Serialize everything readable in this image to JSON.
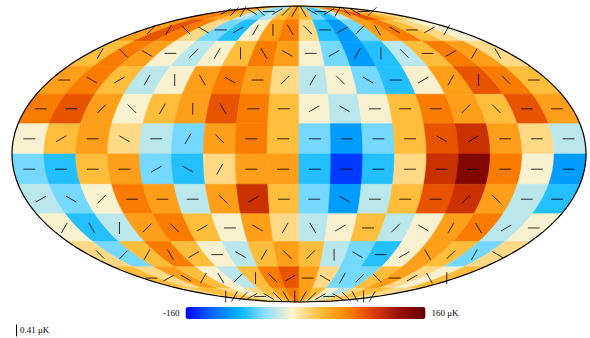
{
  "chart_data": {
    "type": "map",
    "lon_edges": [
      -180,
      -160,
      -140,
      -120,
      -100,
      -80,
      -60,
      -40,
      -20,
      0,
      20,
      40,
      60,
      80,
      100,
      120,
      140,
      160,
      180
    ],
    "lat_edges": [
      90,
      75,
      60,
      45,
      30,
      15,
      0,
      -15,
      -30,
      -45,
      -60,
      -75,
      -90
    ],
    "temperature": [
      [
        60,
        60,
        40,
        20,
        -40,
        -60,
        -40,
        20,
        40,
        20,
        -60,
        -80,
        -40,
        40,
        80,
        40,
        20,
        0
      ],
      [
        40,
        80,
        60,
        0,
        -60,
        -80,
        -20,
        40,
        60,
        0,
        -80,
        -100,
        -60,
        40,
        60,
        20,
        0,
        -20
      ],
      [
        20,
        60,
        40,
        -20,
        -40,
        -20,
        20,
        60,
        40,
        -20,
        -60,
        -100,
        -80,
        -40,
        20,
        60,
        40,
        0
      ],
      [
        40,
        60,
        20,
        -40,
        -20,
        40,
        60,
        40,
        0,
        -40,
        -20,
        -60,
        -80,
        -20,
        40,
        80,
        60,
        20
      ],
      [
        60,
        80,
        40,
        -20,
        20,
        40,
        80,
        60,
        20,
        -20,
        -40,
        -20,
        20,
        60,
        40,
        20,
        80,
        40
      ],
      [
        -20,
        20,
        40,
        0,
        -40,
        -60,
        40,
        60,
        20,
        -60,
        -100,
        -60,
        20,
        80,
        100,
        40,
        0,
        -40
      ],
      [
        -60,
        -80,
        20,
        40,
        -60,
        -80,
        0,
        40,
        40,
        -80,
        -140,
        -80,
        0,
        100,
        140,
        60,
        -20,
        -100
      ],
      [
        -40,
        -60,
        -20,
        60,
        40,
        -40,
        40,
        100,
        20,
        -60,
        -100,
        -40,
        20,
        80,
        100,
        40,
        -40,
        -80
      ],
      [
        -20,
        -80,
        -40,
        40,
        60,
        20,
        -20,
        40,
        0,
        -40,
        -20,
        20,
        -40,
        -20,
        40,
        60,
        -40,
        -20
      ],
      [
        0,
        -60,
        20,
        60,
        20,
        -20,
        -40,
        20,
        40,
        20,
        -40,
        -60,
        -80,
        -20,
        40,
        20,
        -60,
        0
      ],
      [
        20,
        0,
        40,
        20,
        -20,
        -40,
        20,
        60,
        80,
        40,
        0,
        -60,
        -60,
        20,
        40,
        0,
        -20,
        20
      ],
      [
        0,
        20,
        20,
        0,
        -20,
        0,
        20,
        40,
        60,
        40,
        20,
        -20,
        -40,
        0,
        20,
        20,
        0,
        0
      ]
    ],
    "polarization_angles": [
      [
        30,
        45,
        60,
        -30,
        -45,
        0,
        30,
        45,
        60,
        -60,
        -30,
        0,
        30,
        60,
        -45,
        -30,
        0,
        45
      ],
      [
        45,
        60,
        -45,
        -30,
        0,
        30,
        60,
        90,
        -60,
        -45,
        0,
        30,
        45,
        -60,
        -30,
        0,
        30,
        60
      ],
      [
        60,
        -45,
        -30,
        0,
        45,
        60,
        90,
        -60,
        -30,
        0,
        30,
        60,
        90,
        -45,
        0,
        30,
        60,
        -60
      ],
      [
        0,
        -30,
        30,
        60,
        90,
        -60,
        -30,
        0,
        45,
        60,
        -45,
        -30,
        0,
        30,
        60,
        90,
        -45,
        0
      ],
      [
        0,
        0,
        45,
        -45,
        60,
        90,
        -60,
        0,
        0,
        30,
        -30,
        0,
        0,
        0,
        45,
        -45,
        0,
        0
      ],
      [
        0,
        30,
        0,
        -30,
        0,
        60,
        -45,
        0,
        0,
        0,
        0,
        0,
        0,
        -30,
        30,
        0,
        0,
        0
      ],
      [
        0,
        0,
        0,
        0,
        30,
        -30,
        60,
        0,
        0,
        0,
        0,
        0,
        0,
        0,
        0,
        0,
        0,
        0
      ],
      [
        30,
        -30,
        45,
        0,
        0,
        0,
        -45,
        30,
        0,
        0,
        -30,
        0,
        0,
        0,
        45,
        -45,
        0,
        0
      ],
      [
        60,
        -60,
        90,
        45,
        -45,
        30,
        0,
        -30,
        60,
        -60,
        30,
        0,
        45,
        -30,
        60,
        -60,
        30,
        0
      ],
      [
        -45,
        45,
        60,
        -60,
        30,
        0,
        -30,
        60,
        -45,
        45,
        90,
        -30,
        0,
        30,
        -60,
        45,
        60,
        -30
      ],
      [
        0,
        30,
        -30,
        60,
        -60,
        45,
        90,
        -45,
        30,
        0,
        -30,
        60,
        45,
        -45,
        0,
        30,
        -60,
        90
      ],
      [
        90,
        60,
        45,
        30,
        0,
        -30,
        -45,
        -60,
        90,
        60,
        45,
        30,
        0,
        -30,
        -45,
        -60,
        90,
        60
      ]
    ],
    "polarization_scale": {
      "value": 0.41,
      "label": "0.41 μK"
    },
    "colorbar": {
      "range": [
        -160,
        160
      ],
      "ticks": [
        {
          "value": -160,
          "label": "-160"
        },
        {
          "value": 160,
          "label": "160 μK"
        }
      ]
    }
  }
}
